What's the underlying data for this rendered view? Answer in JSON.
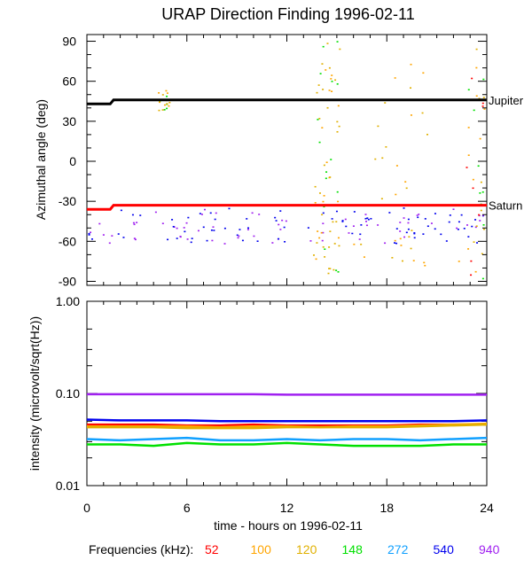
{
  "chart_data": [
    {
      "type": "scatter",
      "title": "URAP Direction Finding  1996-02-11",
      "ylabel": "Azimuthal angle (deg)",
      "xlim": [
        0,
        24
      ],
      "ylim": [
        -93,
        95
      ],
      "yticks": [
        90,
        60,
        30,
        0,
        -30,
        -60,
        -90
      ],
      "reference_lines": [
        {
          "name": "Jupiter",
          "color": "#000000",
          "points": [
            [
              0,
              43
            ],
            [
              1.4,
              43
            ],
            [
              1.6,
              46
            ],
            [
              24,
              46
            ]
          ]
        },
        {
          "name": "Saturn",
          "color": "#ff0000",
          "points": [
            [
              0,
              -36
            ],
            [
              1.4,
              -36
            ],
            [
              1.6,
              -33
            ],
            [
              24,
              -33
            ]
          ]
        }
      ]
    },
    {
      "type": "line",
      "ylabel": "intensity (microvolt/sqrt(Hz))",
      "xlabel": "time - hours on 1996-02-11",
      "xlim": [
        0,
        24
      ],
      "xticks": [
        0,
        6,
        12,
        18,
        24
      ],
      "yscale": "log",
      "ylim": [
        0.01,
        1.0
      ],
      "yticks": [
        "1.00",
        "0.10",
        "0.01"
      ],
      "series": [
        {
          "name": "52",
          "color": "#ff0000",
          "values": [
            0.046,
            0.046,
            0.046,
            0.045,
            0.045,
            0.046,
            0.045,
            0.045,
            0.045,
            0.045,
            0.046,
            0.046,
            0.046
          ]
        },
        {
          "name": "100",
          "color": "#ffa500",
          "values": [
            0.044,
            0.044,
            0.044,
            0.044,
            0.043,
            0.044,
            0.044,
            0.043,
            0.044,
            0.044,
            0.045,
            0.046,
            0.047
          ]
        },
        {
          "name": "120",
          "color": "#e0b000",
          "values": [
            0.043,
            0.043,
            0.043,
            0.042,
            0.042,
            0.042,
            0.043,
            0.043,
            0.043,
            0.043,
            0.044,
            0.045,
            0.046
          ]
        },
        {
          "name": "148",
          "color": "#00e000",
          "values": [
            0.028,
            0.028,
            0.027,
            0.029,
            0.028,
            0.028,
            0.029,
            0.028,
            0.027,
            0.027,
            0.027,
            0.028,
            0.028
          ]
        },
        {
          "name": "272",
          "color": "#10a0ff",
          "values": [
            0.032,
            0.031,
            0.032,
            0.033,
            0.031,
            0.031,
            0.032,
            0.031,
            0.032,
            0.032,
            0.031,
            0.032,
            0.033
          ]
        },
        {
          "name": "540",
          "color": "#0000ee",
          "values": [
            0.052,
            0.051,
            0.051,
            0.051,
            0.05,
            0.05,
            0.05,
            0.05,
            0.05,
            0.05,
            0.05,
            0.05,
            0.051
          ]
        },
        {
          "name": "940",
          "color": "#a020f0",
          "values": [
            0.098,
            0.098,
            0.098,
            0.098,
            0.098,
            0.098,
            0.097,
            0.097,
            0.097,
            0.097,
            0.097,
            0.097,
            0.097
          ]
        }
      ]
    }
  ],
  "legend": {
    "label": "Frequencies (kHz):",
    "items": [
      {
        "label": "52",
        "color": "#ff0000"
      },
      {
        "label": "100",
        "color": "#ffa500"
      },
      {
        "label": "120",
        "color": "#e0b000"
      },
      {
        "label": "148",
        "color": "#00e000"
      },
      {
        "label": "272",
        "color": "#10a0ff"
      },
      {
        "label": "540",
        "color": "#0000ee"
      },
      {
        "label": "940",
        "color": "#a020f0"
      }
    ]
  }
}
